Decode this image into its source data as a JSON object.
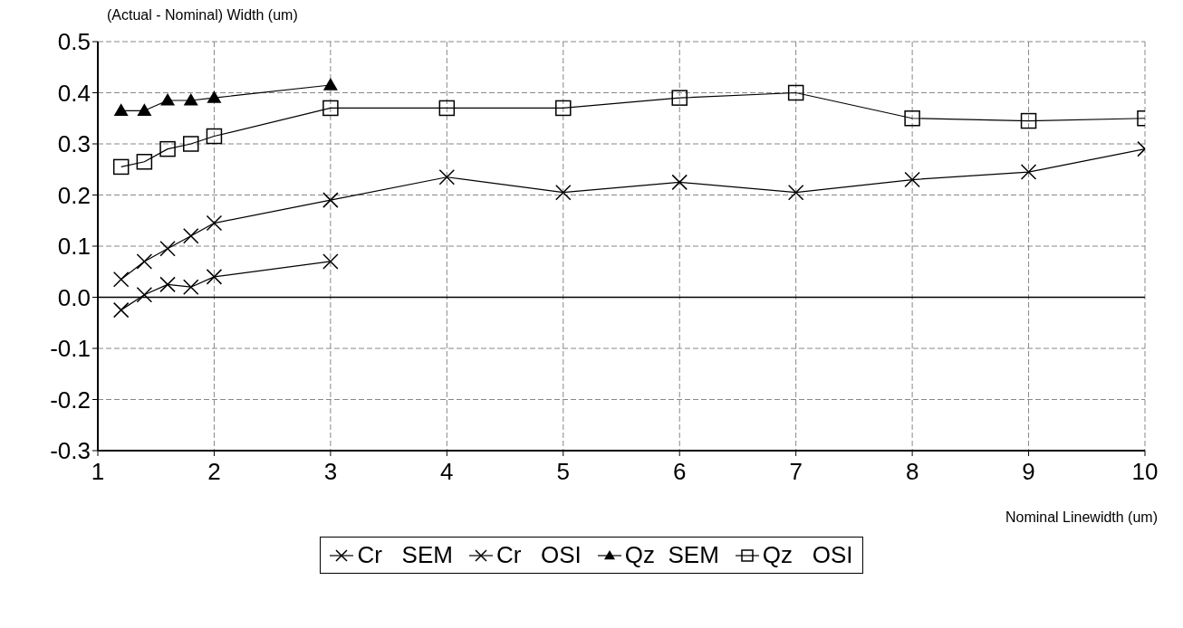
{
  "chart_data": {
    "type": "line",
    "xlabel": "Nominal Linewidth   (um)",
    "ylabel": "(Actual - Nominal) Width (um)",
    "x": [
      1.2,
      1.4,
      1.6,
      1.8,
      2,
      3,
      4,
      5,
      6,
      7,
      8,
      9,
      10
    ],
    "series": [
      {
        "name": "Cr   SEM",
        "color": "#000000",
        "marker": "cross",
        "x": [
          1.2,
          1.4,
          1.6,
          1.8,
          2,
          3
        ],
        "values": [
          -0.025,
          0.005,
          0.025,
          0.02,
          0.04,
          0.07
        ]
      },
      {
        "name": "Cr   OSI",
        "color": "#000000",
        "marker": "cross",
        "values": [
          0.035,
          0.07,
          0.095,
          0.12,
          0.145,
          0.19,
          0.235,
          0.205,
          0.225,
          0.205,
          0.23,
          0.245,
          0.29
        ]
      },
      {
        "name": "Qz  SEM",
        "color": "#000000",
        "marker": "triangle",
        "x": [
          1.2,
          1.4,
          1.6,
          1.8,
          2,
          3
        ],
        "values": [
          0.365,
          0.365,
          0.385,
          0.385,
          0.39,
          0.415
        ]
      },
      {
        "name": "Qz   OSI",
        "color": "#000000",
        "marker": "square",
        "values": [
          0.255,
          0.265,
          0.29,
          0.3,
          0.315,
          0.37,
          0.37,
          0.37,
          0.39,
          0.4,
          0.35,
          0.345,
          0.35
        ]
      }
    ],
    "xlim": [
      1,
      10
    ],
    "xticks": [
      1,
      2,
      3,
      4,
      5,
      6,
      7,
      8,
      9,
      10
    ],
    "ylim": [
      -0.3,
      0.5
    ],
    "yticks": [
      {
        "value": -0.3,
        "label": "-0.3"
      },
      {
        "value": -0.2,
        "label": "-0.2"
      },
      {
        "value": -0.1,
        "label": "-0.1"
      },
      {
        "value": 0,
        "label": "0.0"
      },
      {
        "value": 0.1,
        "label": "0.1"
      },
      {
        "value": 0.2,
        "label": "0.2"
      },
      {
        "value": 0.3,
        "label": "0.3"
      },
      {
        "value": 0.4,
        "label": "0.4"
      },
      {
        "value": 0.5,
        "label": "0.5"
      }
    ],
    "ref_lines": [
      {
        "axis": "y",
        "value": 0,
        "color": "#000000"
      }
    ],
    "grid": true,
    "legend": "bottom",
    "line_style": "solid"
  }
}
